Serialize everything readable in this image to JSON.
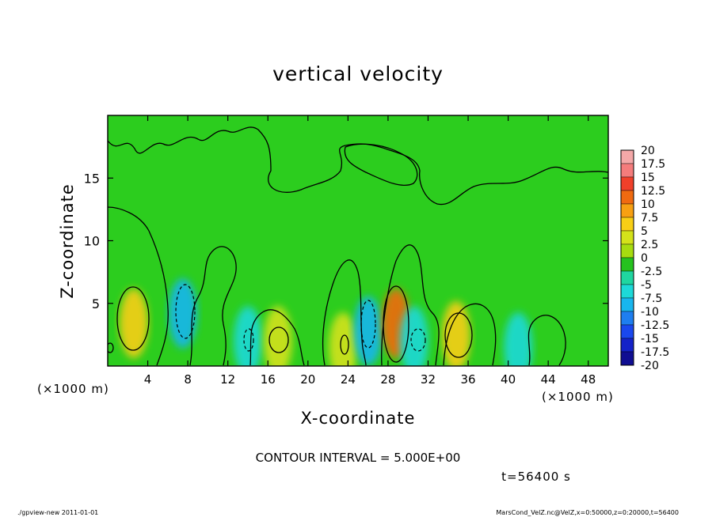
{
  "chart_data": {
    "type": "heatmap",
    "title": "vertical velocity",
    "xlabel": "X-coordinate",
    "ylabel": "Z-coordinate",
    "x_unit_left": "(×1000 m)",
    "x_unit_right": "(×1000 m)",
    "xlim": [
      0,
      50
    ],
    "ylim": [
      0,
      20
    ],
    "x_ticks": [
      4,
      8,
      12,
      16,
      20,
      24,
      28,
      32,
      36,
      40,
      44,
      48
    ],
    "y_ticks": [
      5,
      10,
      15
    ],
    "contour_interval_text": "CONTOUR INTERVAL = 5.000E+00",
    "time_text": "t=56400 s",
    "footer_left": "./gpview-new   2011-01-01",
    "footer_right": "MarsCond_VelZ.nc@VelZ,x=0:50000,z=0:20000,t=56400",
    "colorbar": {
      "labels": [
        "20",
        "17.5",
        "15",
        "12.5",
        "10",
        "7.5",
        "5",
        "2.5",
        "0",
        "-2.5",
        "-5",
        "-7.5",
        "-10",
        "-12.5",
        "-15",
        "-17.5",
        "-20"
      ],
      "colors": [
        "#f4a8a8",
        "#f47c7c",
        "#f0402a",
        "#f06a10",
        "#f7a012",
        "#f8cf16",
        "#d4e21a",
        "#a7dc10",
        "#26c21f",
        "#1fd6a0",
        "#1dd9d8",
        "#18b6ee",
        "#1e7ef0",
        "#1a48ee",
        "#1422c8",
        "#100e92",
        "#6010a8"
      ]
    },
    "features": [
      {
        "x": 2.6,
        "z": 3.4,
        "value": 7.5
      },
      {
        "x": 7.5,
        "z": 4.2,
        "value": -7.5
      },
      {
        "x": 14.0,
        "z": 2.0,
        "value": -5
      },
      {
        "x": 17.0,
        "z": 2.0,
        "value": 5
      },
      {
        "x": 23.5,
        "z": 1.5,
        "value": 5
      },
      {
        "x": 26.0,
        "z": 2.8,
        "value": -7.5
      },
      {
        "x": 28.8,
        "z": 3.4,
        "value": 12.5
      },
      {
        "x": 30.6,
        "z": 2.0,
        "value": -5
      },
      {
        "x": 34.8,
        "z": 2.4,
        "value": 7.5
      },
      {
        "x": 41.0,
        "z": 1.5,
        "value": -5
      }
    ]
  }
}
